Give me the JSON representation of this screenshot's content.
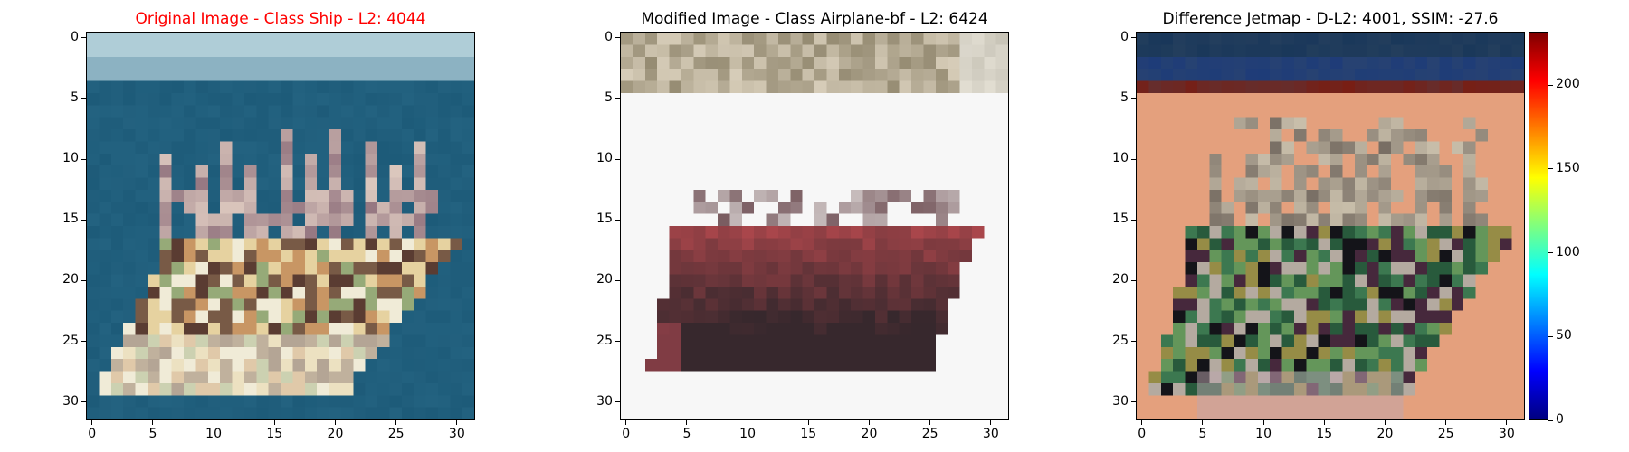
{
  "colors": {
    "title_red": "#ff0000",
    "title_black": "#000000",
    "jet_stops": [
      "#00007f",
      "#0000ff",
      "#007fff",
      "#00ffff",
      "#7fff7f",
      "#ffff00",
      "#ff7f00",
      "#ff0000",
      "#7f0000"
    ]
  },
  "chart_data": [
    {
      "type": "heatmap",
      "title": "Original Image - Class Ship - L2: 4044",
      "title_color": "#ff0000",
      "image_size": [
        32,
        32
      ],
      "xticks": [
        0,
        5,
        10,
        15,
        20,
        25,
        30
      ],
      "yticks": [
        0,
        5,
        10,
        15,
        20,
        25,
        30
      ],
      "xlim": [
        -0.5,
        31.5
      ],
      "ylim": [
        31.5,
        -0.5
      ],
      "content": "pixelated ship on blue-green sea"
    },
    {
      "type": "heatmap",
      "title": "Modified Image - Class Airplane-bf - L2: 6424",
      "title_color": "#000000",
      "image_size": [
        32,
        32
      ],
      "xticks": [
        0,
        5,
        10,
        15,
        20,
        25,
        30
      ],
      "yticks": [
        0,
        5,
        10,
        15,
        20,
        25,
        30
      ],
      "xlim": [
        -0.5,
        31.5
      ],
      "ylim": [
        31.5,
        -0.5
      ],
      "content": "pixelated dark red boat shape on white background"
    },
    {
      "type": "heatmap",
      "title": "Difference Jetmap - D-L2: 4001, SSIM: -27.6",
      "title_color": "#000000",
      "image_size": [
        32,
        32
      ],
      "xticks": [
        0,
        5,
        10,
        15,
        20,
        25,
        30
      ],
      "yticks": [
        0,
        5,
        10,
        15,
        20,
        25,
        30
      ],
      "xlim": [
        -0.5,
        31.5
      ],
      "ylim": [
        31.5,
        -0.5
      ],
      "colorbar": {
        "ticks": [
          0,
          50,
          100,
          150,
          200
        ],
        "range": [
          0,
          232
        ],
        "colormap": "jet"
      },
      "content": "difference map, salmon background with dark/green ship outline"
    }
  ]
}
